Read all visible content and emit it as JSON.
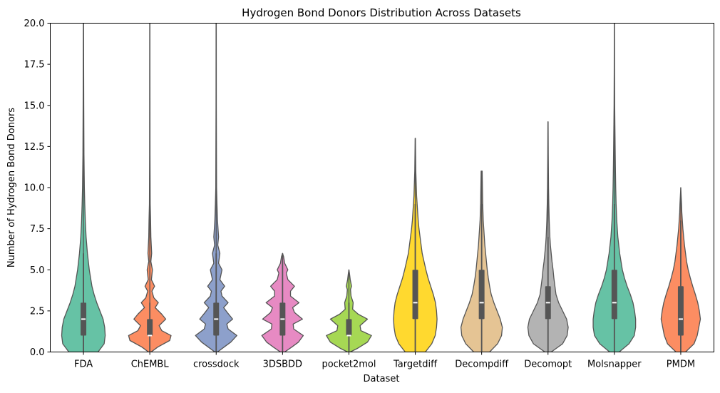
{
  "chart_data": {
    "type": "violin",
    "title": "Hydrogen Bond Donors Distribution Across Datasets",
    "xlabel": "Dataset",
    "ylabel": "Number of Hydrogen Bond Donors",
    "ylim": [
      0,
      20
    ],
    "yticks": [
      "0.0",
      "2.5",
      "5.0",
      "7.5",
      "10.0",
      "12.5",
      "15.0",
      "17.5",
      "20.0"
    ],
    "grid": false,
    "categories": [
      "FDA",
      "ChEMBL",
      "crossdock",
      "3DSBDD",
      "pocket2mol",
      "Targetdiff",
      "Decompdiff",
      "Decomopt",
      "Molsnapper",
      "PMDM"
    ],
    "colors": [
      "#66c2a5",
      "#fc8d62",
      "#8da0cb",
      "#e78ac3",
      "#a6d854",
      "#ffd92f",
      "#e5c494",
      "#b3b3b3",
      "#66c2a5",
      "#fc8d62"
    ],
    "series": [
      {
        "name": "FDA",
        "min": 0,
        "max": 20,
        "median": 2,
        "q1": 1,
        "q3": 3,
        "whisker_low": 0,
        "whisker_high": 6,
        "density": [
          [
            0,
            0.55
          ],
          [
            0.5,
            0.78
          ],
          [
            1,
            0.82
          ],
          [
            1.5,
            0.8
          ],
          [
            2,
            0.74
          ],
          [
            2.5,
            0.62
          ],
          [
            3,
            0.5
          ],
          [
            3.5,
            0.4
          ],
          [
            4,
            0.32
          ],
          [
            5,
            0.22
          ],
          [
            6,
            0.15
          ],
          [
            7,
            0.1
          ],
          [
            8,
            0.07
          ],
          [
            9,
            0.05
          ],
          [
            10,
            0.035
          ],
          [
            12,
            0.02
          ],
          [
            15,
            0.012
          ],
          [
            20,
            0.004
          ]
        ]
      },
      {
        "name": "ChEMBL",
        "min": 0,
        "max": 20,
        "median": 1,
        "q1": 1,
        "q3": 2,
        "whisker_low": 0,
        "whisker_high": 3,
        "density": [
          [
            0,
            0.05
          ],
          [
            0.3,
            0.3
          ],
          [
            0.7,
            0.75
          ],
          [
            1,
            0.8
          ],
          [
            1.3,
            0.45
          ],
          [
            1.6,
            0.35
          ],
          [
            2,
            0.6
          ],
          [
            2.3,
            0.45
          ],
          [
            2.7,
            0.2
          ],
          [
            3,
            0.32
          ],
          [
            3.3,
            0.15
          ],
          [
            3.7,
            0.08
          ],
          [
            4,
            0.18
          ],
          [
            4.4,
            0.06
          ],
          [
            5,
            0.1
          ],
          [
            5.5,
            0.04
          ],
          [
            6,
            0.07
          ],
          [
            7,
            0.04
          ],
          [
            8,
            0.03
          ],
          [
            9,
            0.015
          ],
          [
            12,
            0.008
          ],
          [
            20,
            0.004
          ]
        ]
      },
      {
        "name": "crossdock",
        "min": 0,
        "max": 20,
        "median": 2,
        "q1": 1,
        "q3": 3,
        "whisker_low": 0,
        "whisker_high": 6,
        "density": [
          [
            0,
            0.05
          ],
          [
            0.3,
            0.3
          ],
          [
            0.6,
            0.55
          ],
          [
            1,
            0.78
          ],
          [
            1.4,
            0.45
          ],
          [
            1.7,
            0.4
          ],
          [
            2,
            0.62
          ],
          [
            2.4,
            0.42
          ],
          [
            2.7,
            0.28
          ],
          [
            3,
            0.45
          ],
          [
            3.4,
            0.22
          ],
          [
            3.7,
            0.18
          ],
          [
            4,
            0.32
          ],
          [
            4.4,
            0.14
          ],
          [
            5,
            0.22
          ],
          [
            5.4,
            0.09
          ],
          [
            6,
            0.14
          ],
          [
            6.5,
            0.06
          ],
          [
            7,
            0.09
          ],
          [
            8,
            0.05
          ],
          [
            9,
            0.03
          ],
          [
            10,
            0.015
          ],
          [
            15,
            0.006
          ],
          [
            20,
            0.004
          ]
        ]
      },
      {
        "name": "3DSBDD",
        "min": 0,
        "max": 6,
        "median": 2,
        "q1": 1,
        "q3": 3,
        "whisker_low": 0,
        "whisker_high": 6,
        "density": [
          [
            0,
            0.08
          ],
          [
            0.3,
            0.35
          ],
          [
            0.6,
            0.6
          ],
          [
            1,
            0.78
          ],
          [
            1.4,
            0.42
          ],
          [
            1.7,
            0.4
          ],
          [
            2,
            0.75
          ],
          [
            2.4,
            0.45
          ],
          [
            2.7,
            0.38
          ],
          [
            3,
            0.62
          ],
          [
            3.4,
            0.3
          ],
          [
            3.7,
            0.3
          ],
          [
            4,
            0.45
          ],
          [
            4.4,
            0.2
          ],
          [
            4.8,
            0.14
          ],
          [
            5,
            0.2
          ],
          [
            5.4,
            0.08
          ],
          [
            5.8,
            0.04
          ],
          [
            6,
            0.0
          ]
        ]
      },
      {
        "name": "pocket2mol",
        "min": 0,
        "max": 5,
        "median": 1,
        "q1": 1,
        "q3": 2,
        "whisker_low": 0,
        "whisker_high": 3,
        "density": [
          [
            0,
            0.05
          ],
          [
            0.2,
            0.3
          ],
          [
            0.6,
            0.7
          ],
          [
            1,
            0.85
          ],
          [
            1.3,
            0.45
          ],
          [
            1.6,
            0.42
          ],
          [
            2,
            0.7
          ],
          [
            2.3,
            0.35
          ],
          [
            2.6,
            0.14
          ],
          [
            3,
            0.16
          ],
          [
            3.4,
            0.08
          ],
          [
            3.8,
            0.06
          ],
          [
            4,
            0.1
          ],
          [
            4.4,
            0.05
          ],
          [
            4.8,
            0.02
          ],
          [
            5,
            0.0
          ]
        ]
      },
      {
        "name": "Targetdiff",
        "min": 0,
        "max": 13,
        "median": 3,
        "q1": 2,
        "q3": 5,
        "whisker_low": 0,
        "whisker_high": 9,
        "density": [
          [
            0,
            0.38
          ],
          [
            0.5,
            0.62
          ],
          [
            1,
            0.75
          ],
          [
            1.5,
            0.8
          ],
          [
            2,
            0.82
          ],
          [
            2.5,
            0.8
          ],
          [
            3,
            0.76
          ],
          [
            3.5,
            0.68
          ],
          [
            4,
            0.58
          ],
          [
            4.5,
            0.48
          ],
          [
            5,
            0.4
          ],
          [
            5.5,
            0.33
          ],
          [
            6,
            0.26
          ],
          [
            6.5,
            0.22
          ],
          [
            7,
            0.18
          ],
          [
            7.5,
            0.14
          ],
          [
            8,
            0.11
          ],
          [
            8.5,
            0.09
          ],
          [
            9,
            0.07
          ],
          [
            9.5,
            0.05
          ],
          [
            10,
            0.04
          ],
          [
            11,
            0.02
          ],
          [
            13,
            0.004
          ]
        ]
      },
      {
        "name": "Decompdiff",
        "min": 0,
        "max": 11,
        "median": 3,
        "q1": 2,
        "q3": 5,
        "whisker_low": 0,
        "whisker_high": 9,
        "density": [
          [
            0,
            0.3
          ],
          [
            0.5,
            0.6
          ],
          [
            1,
            0.75
          ],
          [
            1.5,
            0.78
          ],
          [
            2,
            0.7
          ],
          [
            2.5,
            0.58
          ],
          [
            3,
            0.46
          ],
          [
            3.5,
            0.36
          ],
          [
            4,
            0.3
          ],
          [
            4.5,
            0.25
          ],
          [
            5,
            0.21
          ],
          [
            5.5,
            0.18
          ],
          [
            6,
            0.15
          ],
          [
            6.5,
            0.12
          ],
          [
            7,
            0.1
          ],
          [
            7.5,
            0.08
          ],
          [
            8,
            0.06
          ],
          [
            8.5,
            0.05
          ],
          [
            9,
            0.04
          ],
          [
            10,
            0.03
          ],
          [
            11,
            0.02
          ]
        ]
      },
      {
        "name": "Decomopt",
        "min": 0,
        "max": 14,
        "median": 3,
        "q1": 2,
        "q3": 4,
        "whisker_low": 0,
        "whisker_high": 7,
        "density": [
          [
            0,
            0.12
          ],
          [
            0.5,
            0.55
          ],
          [
            1,
            0.72
          ],
          [
            1.5,
            0.76
          ],
          [
            2,
            0.7
          ],
          [
            2.5,
            0.55
          ],
          [
            3,
            0.4
          ],
          [
            3.5,
            0.3
          ],
          [
            4,
            0.26
          ],
          [
            4.5,
            0.22
          ],
          [
            5,
            0.19
          ],
          [
            5.5,
            0.15
          ],
          [
            6,
            0.12
          ],
          [
            6.5,
            0.09
          ],
          [
            7,
            0.07
          ],
          [
            8,
            0.045
          ],
          [
            9,
            0.03
          ],
          [
            10,
            0.02
          ],
          [
            12,
            0.01
          ],
          [
            14,
            0.004
          ]
        ]
      },
      {
        "name": "Molsnapper",
        "min": 0,
        "max": 20,
        "median": 3,
        "q1": 2,
        "q3": 5,
        "whisker_low": 0,
        "whisker_high": 9,
        "density": [
          [
            0,
            0.18
          ],
          [
            0.5,
            0.55
          ],
          [
            1,
            0.75
          ],
          [
            1.5,
            0.8
          ],
          [
            2,
            0.8
          ],
          [
            2.5,
            0.76
          ],
          [
            3,
            0.7
          ],
          [
            3.5,
            0.6
          ],
          [
            4,
            0.48
          ],
          [
            4.5,
            0.38
          ],
          [
            5,
            0.3
          ],
          [
            6,
            0.2
          ],
          [
            7,
            0.13
          ],
          [
            8,
            0.09
          ],
          [
            9,
            0.065
          ],
          [
            10,
            0.05
          ],
          [
            11,
            0.04
          ],
          [
            12,
            0.032
          ],
          [
            13,
            0.025
          ],
          [
            14,
            0.018
          ],
          [
            15,
            0.012
          ],
          [
            17,
            0.007
          ],
          [
            20,
            0.004
          ]
        ]
      },
      {
        "name": "PMDM",
        "min": 0,
        "max": 10,
        "median": 2,
        "q1": 1,
        "q3": 4,
        "whisker_low": 0,
        "whisker_high": 8,
        "density": [
          [
            0,
            0.18
          ],
          [
            0.5,
            0.5
          ],
          [
            1,
            0.62
          ],
          [
            1.5,
            0.68
          ],
          [
            2,
            0.74
          ],
          [
            2.5,
            0.7
          ],
          [
            3,
            0.64
          ],
          [
            3.5,
            0.55
          ],
          [
            4,
            0.45
          ],
          [
            4.5,
            0.36
          ],
          [
            5,
            0.28
          ],
          [
            5.5,
            0.22
          ],
          [
            6,
            0.18
          ],
          [
            6.5,
            0.14
          ],
          [
            7,
            0.11
          ],
          [
            7.5,
            0.08
          ],
          [
            8,
            0.06
          ],
          [
            8.5,
            0.04
          ],
          [
            9,
            0.03
          ],
          [
            9.5,
            0.015
          ],
          [
            10,
            0.0
          ]
        ]
      }
    ]
  }
}
